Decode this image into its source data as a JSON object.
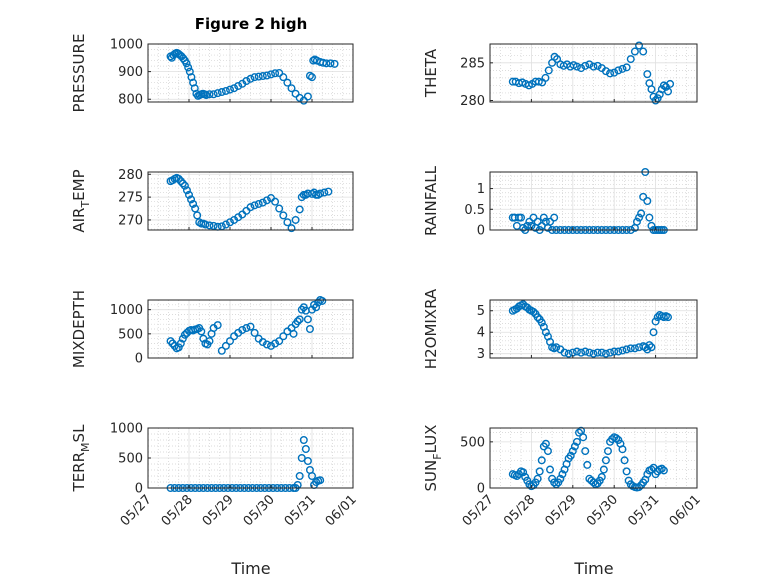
{
  "figure": {
    "title": "Figure 2 high",
    "xlabel": "Time"
  },
  "chart_data": [
    {
      "type": "scatter",
      "ylabel": "PRESSURE",
      "ylabel_main": "PRESSURE",
      "ylabel_sub": "",
      "ylabel_rest": "",
      "ylim": [
        790,
        1000
      ],
      "yticks": [
        "800",
        "900",
        "1000"
      ],
      "ytick_values": [
        800,
        900,
        1000
      ],
      "xlim": [
        0,
        5
      ],
      "xticks": [
        "05/27",
        "05/28",
        "05/29",
        "05/30",
        "05/31",
        "06/01"
      ],
      "x": [
        0.55,
        0.58,
        0.62,
        0.66,
        0.7,
        0.74,
        0.78,
        0.82,
        0.86,
        0.9,
        0.94,
        0.98,
        1.02,
        1.06,
        1.1,
        1.14,
        1.18,
        1.22,
        1.26,
        1.3,
        1.34,
        1.38,
        1.42,
        1.5,
        1.6,
        1.7,
        1.8,
        1.9,
        2.0,
        2.1,
        2.2,
        2.3,
        2.4,
        2.5,
        2.6,
        2.7,
        2.8,
        2.9,
        3.0,
        3.1,
        3.2,
        3.3,
        3.4,
        3.5,
        3.6,
        3.7,
        3.8,
        3.9,
        3.95,
        4.0,
        4.03,
        4.07,
        4.12,
        4.2,
        4.27,
        4.35,
        4.45,
        4.55
      ],
      "y": [
        955,
        950,
        960,
        965,
        968,
        965,
        960,
        955,
        948,
        940,
        930,
        915,
        900,
        880,
        860,
        840,
        820,
        812,
        815,
        818,
        820,
        818,
        815,
        818,
        818,
        822,
        826,
        830,
        835,
        840,
        848,
        856,
        866,
        874,
        880,
        882,
        884,
        886,
        890,
        894,
        895,
        880,
        860,
        840,
        820,
        805,
        795,
        810,
        885,
        880,
        940,
        944,
        940,
        935,
        932,
        930,
        930,
        928
      ],
      "color": "#0072BD"
    },
    {
      "type": "scatter",
      "ylabel": "THETA",
      "ylabel_main": "THETA",
      "ylabel_sub": "",
      "ylabel_rest": "",
      "ylim": [
        279.8,
        287.5
      ],
      "yticks": [
        "280",
        "285"
      ],
      "ytick_values": [
        280,
        285
      ],
      "xlim": [
        0,
        5
      ],
      "xticks": [
        "05/27",
        "05/28",
        "05/29",
        "05/30",
        "05/31",
        "06/01"
      ],
      "x": [
        0.55,
        0.62,
        0.7,
        0.78,
        0.86,
        0.94,
        1.02,
        1.1,
        1.18,
        1.26,
        1.34,
        1.42,
        1.5,
        1.56,
        1.62,
        1.7,
        1.78,
        1.86,
        1.94,
        2.02,
        2.1,
        2.2,
        2.3,
        2.4,
        2.5,
        2.6,
        2.7,
        2.8,
        2.9,
        3.0,
        3.1,
        3.2,
        3.3,
        3.4,
        3.5,
        3.6,
        3.7,
        3.8,
        3.85,
        3.9,
        3.95,
        4.0,
        4.05,
        4.1,
        4.15,
        4.2,
        4.25,
        4.3,
        4.35
      ],
      "y": [
        282.5,
        282.5,
        282.3,
        282.4,
        282.2,
        282.0,
        282.2,
        282.5,
        282.5,
        282.4,
        283.0,
        284.0,
        285.0,
        285.8,
        285.5,
        284.8,
        284.6,
        284.8,
        284.5,
        284.7,
        284.5,
        284.3,
        284.6,
        284.8,
        284.5,
        284.6,
        284.3,
        283.9,
        283.6,
        283.7,
        284.0,
        284.2,
        284.4,
        285.5,
        286.5,
        287.3,
        286.5,
        283.5,
        282.3,
        281.5,
        280.5,
        280.0,
        280.3,
        280.8,
        281.5,
        282.0,
        281.8,
        281.2,
        282.2
      ],
      "color": "#0072BD"
    },
    {
      "type": "scatter",
      "ylabel": "AIR_TEMP",
      "ylabel_main": "AIR",
      "ylabel_sub": "T",
      "ylabel_rest": "EMP",
      "ylim": [
        267.8,
        280.5
      ],
      "yticks": [
        "270",
        "275",
        "280"
      ],
      "ytick_values": [
        270,
        275,
        280
      ],
      "xlim": [
        0,
        5
      ],
      "xticks": [
        "05/27",
        "05/28",
        "05/29",
        "05/30",
        "05/31",
        "06/01"
      ],
      "x": [
        0.55,
        0.6,
        0.65,
        0.7,
        0.75,
        0.8,
        0.85,
        0.9,
        0.95,
        1.0,
        1.05,
        1.1,
        1.15,
        1.2,
        1.25,
        1.3,
        1.35,
        1.4,
        1.5,
        1.6,
        1.7,
        1.8,
        1.9,
        2.0,
        2.1,
        2.2,
        2.3,
        2.4,
        2.5,
        2.6,
        2.7,
        2.8,
        2.9,
        3.0,
        3.1,
        3.2,
        3.3,
        3.4,
        3.5,
        3.6,
        3.7,
        3.75,
        3.8,
        3.85,
        3.9,
        4.0,
        4.05,
        4.1,
        4.15,
        4.2,
        4.3,
        4.4
      ],
      "y": [
        278.5,
        278.7,
        279.0,
        279.2,
        279.0,
        278.5,
        278.0,
        277.5,
        276.5,
        275.5,
        274.5,
        273.5,
        272.5,
        271.0,
        269.5,
        269.2,
        269.2,
        269.0,
        268.8,
        268.7,
        268.5,
        268.6,
        269.0,
        269.5,
        270.0,
        270.6,
        271.2,
        272.0,
        272.8,
        273.2,
        273.5,
        273.8,
        274.3,
        274.8,
        274.0,
        272.5,
        271.0,
        269.5,
        268.2,
        270.0,
        272.3,
        275.0,
        275.5,
        275.5,
        275.8,
        275.7,
        276.0,
        275.5,
        275.5,
        275.8,
        276.0,
        276.2
      ],
      "color": "#0072BD"
    },
    {
      "type": "scatter",
      "ylabel": "RAINFALL",
      "ylabel_main": "RAINFALL",
      "ylabel_sub": "",
      "ylabel_rest": "",
      "ylim": [
        0,
        1.4
      ],
      "yticks": [
        "0",
        "0.5",
        "1"
      ],
      "ytick_values": [
        0,
        0.5,
        1
      ],
      "xlim": [
        0,
        5
      ],
      "xticks": [
        "05/27",
        "05/28",
        "05/29",
        "05/30",
        "05/31",
        "06/01"
      ],
      "x": [
        0.55,
        0.6,
        0.65,
        0.7,
        0.75,
        0.8,
        0.85,
        0.9,
        0.95,
        1.0,
        1.05,
        1.1,
        1.15,
        1.2,
        1.25,
        1.3,
        1.35,
        1.4,
        1.45,
        1.5,
        1.55,
        1.6,
        1.7,
        1.8,
        1.9,
        2.0,
        2.1,
        2.2,
        2.3,
        2.4,
        2.5,
        2.6,
        2.7,
        2.8,
        2.9,
        3.0,
        3.1,
        3.2,
        3.3,
        3.4,
        3.5,
        3.55,
        3.6,
        3.65,
        3.7,
        3.75,
        3.8,
        3.85,
        3.9,
        3.95,
        4.0,
        4.05,
        4.1,
        4.15,
        4.2
      ],
      "y": [
        0.3,
        0.3,
        0.1,
        0.3,
        0.3,
        0.05,
        0,
        0.1,
        0.2,
        0.1,
        0.3,
        0.05,
        0.2,
        0,
        0.1,
        0.3,
        0.2,
        0.05,
        0.2,
        0,
        0.3,
        0,
        0,
        0,
        0,
        0,
        0,
        0,
        0,
        0,
        0,
        0,
        0,
        0,
        0,
        0,
        0,
        0,
        0,
        0,
        0.05,
        0.2,
        0.3,
        0.4,
        0.8,
        1.4,
        0.7,
        0.3,
        0.1,
        0,
        0,
        0,
        0,
        0,
        0
      ],
      "color": "#0072BD"
    },
    {
      "type": "scatter",
      "ylabel": "MIXDEPTH",
      "ylabel_main": "MIXDEPTH",
      "ylabel_sub": "",
      "ylabel_rest": "",
      "ylim": [
        0,
        1200
      ],
      "yticks": [
        "0",
        "500",
        "1000"
      ],
      "ytick_values": [
        0,
        500,
        1000
      ],
      "xlim": [
        0,
        5
      ],
      "xticks": [
        "05/27",
        "05/28",
        "05/29",
        "05/30",
        "05/31",
        "06/01"
      ],
      "x": [
        0.55,
        0.6,
        0.65,
        0.7,
        0.75,
        0.8,
        0.85,
        0.9,
        0.95,
        1.0,
        1.05,
        1.1,
        1.15,
        1.2,
        1.25,
        1.3,
        1.35,
        1.4,
        1.45,
        1.5,
        1.55,
        1.6,
        1.7,
        1.8,
        1.9,
        2.0,
        2.1,
        2.2,
        2.3,
        2.4,
        2.5,
        2.6,
        2.7,
        2.8,
        2.9,
        3.0,
        3.1,
        3.2,
        3.3,
        3.4,
        3.5,
        3.55,
        3.6,
        3.65,
        3.7,
        3.75,
        3.8,
        3.85,
        3.9,
        3.95,
        4.0,
        4.05,
        4.1,
        4.15,
        4.2,
        4.25
      ],
      "y": [
        350,
        300,
        250,
        200,
        220,
        300,
        400,
        480,
        520,
        560,
        580,
        570,
        590,
        600,
        620,
        550,
        400,
        300,
        280,
        350,
        500,
        620,
        680,
        150,
        250,
        350,
        450,
        520,
        580,
        620,
        650,
        520,
        400,
        330,
        280,
        250,
        300,
        350,
        450,
        550,
        620,
        500,
        700,
        760,
        800,
        1000,
        1050,
        980,
        800,
        600,
        1000,
        1100,
        1050,
        1150,
        1200,
        1180
      ],
      "color": "#0072BD"
    },
    {
      "type": "scatter",
      "ylabel": "H2OMIXRA",
      "ylabel_main": "H2OMIXRA",
      "ylabel_sub": "",
      "ylabel_rest": "",
      "ylim": [
        2.8,
        5.5
      ],
      "yticks": [
        "3",
        "4",
        "5"
      ],
      "ytick_values": [
        3,
        4,
        5
      ],
      "xlim": [
        0,
        5
      ],
      "xticks": [
        "05/27",
        "05/28",
        "05/29",
        "05/30",
        "05/31",
        "06/01"
      ],
      "x": [
        0.55,
        0.6,
        0.65,
        0.7,
        0.75,
        0.8,
        0.85,
        0.9,
        0.95,
        1.0,
        1.05,
        1.1,
        1.15,
        1.2,
        1.25,
        1.3,
        1.35,
        1.4,
        1.45,
        1.5,
        1.55,
        1.6,
        1.7,
        1.8,
        1.9,
        2.0,
        2.1,
        2.2,
        2.3,
        2.4,
        2.5,
        2.6,
        2.7,
        2.8,
        2.9,
        3.0,
        3.1,
        3.2,
        3.3,
        3.4,
        3.5,
        3.6,
        3.7,
        3.75,
        3.8,
        3.85,
        3.9,
        3.95,
        4.0,
        4.05,
        4.1,
        4.15,
        4.2,
        4.25,
        4.3
      ],
      "y": [
        5.0,
        5.05,
        5.1,
        5.2,
        5.25,
        5.3,
        5.2,
        5.15,
        5.05,
        5.0,
        4.95,
        4.85,
        4.7,
        4.6,
        4.45,
        4.25,
        4.0,
        3.8,
        3.55,
        3.3,
        3.25,
        3.3,
        3.2,
        3.05,
        3.0,
        3.05,
        3.1,
        3.05,
        3.1,
        3.05,
        3.0,
        3.05,
        3.05,
        3.0,
        3.05,
        3.1,
        3.1,
        3.15,
        3.2,
        3.25,
        3.25,
        3.3,
        3.35,
        3.3,
        3.2,
        3.4,
        3.3,
        4.0,
        4.5,
        4.7,
        4.8,
        4.75,
        4.7,
        4.75,
        4.7
      ],
      "color": "#0072BD"
    },
    {
      "type": "scatter",
      "ylabel": "TERR_MSL",
      "ylabel_main": "TERR",
      "ylabel_sub": "M",
      "ylabel_rest": "SL",
      "ylim": [
        0,
        1000
      ],
      "yticks": [
        "0",
        "500",
        "1000"
      ],
      "ytick_values": [
        0,
        500,
        1000
      ],
      "xlim": [
        0,
        5
      ],
      "xticks": [
        "05/27",
        "05/28",
        "05/29",
        "05/30",
        "05/31",
        "06/01"
      ],
      "x": [
        0.55,
        0.65,
        0.75,
        0.85,
        0.95,
        1.05,
        1.15,
        1.25,
        1.35,
        1.45,
        1.55,
        1.65,
        1.75,
        1.85,
        1.95,
        2.05,
        2.15,
        2.25,
        2.35,
        2.45,
        2.55,
        2.65,
        2.75,
        2.85,
        2.95,
        3.05,
        3.15,
        3.25,
        3.35,
        3.45,
        3.55,
        3.6,
        3.65,
        3.7,
        3.75,
        3.8,
        3.85,
        3.9,
        3.95,
        4.0,
        4.05,
        4.1,
        4.15,
        4.2
      ],
      "y": [
        0,
        0,
        0,
        0,
        0,
        0,
        0,
        0,
        0,
        0,
        0,
        0,
        0,
        0,
        0,
        0,
        0,
        0,
        0,
        0,
        0,
        0,
        0,
        0,
        0,
        0,
        0,
        0,
        0,
        0,
        0,
        0,
        50,
        200,
        500,
        800,
        650,
        450,
        300,
        200,
        50,
        100,
        120,
        130
      ],
      "color": "#0072BD"
    },
    {
      "type": "scatter",
      "ylabel": "SUN_FLUX",
      "ylabel_main": "SUN",
      "ylabel_sub": "F",
      "ylabel_rest": "LUX",
      "ylim": [
        0,
        650
      ],
      "yticks": [
        "0",
        "500"
      ],
      "ytick_values": [
        0,
        500
      ],
      "xlim": [
        0,
        5
      ],
      "xticks": [
        "05/27",
        "05/28",
        "05/29",
        "05/30",
        "05/31",
        "06/01"
      ],
      "x": [
        0.55,
        0.6,
        0.65,
        0.7,
        0.75,
        0.8,
        0.85,
        0.9,
        0.95,
        1.0,
        1.05,
        1.1,
        1.15,
        1.2,
        1.25,
        1.3,
        1.35,
        1.4,
        1.45,
        1.5,
        1.55,
        1.6,
        1.65,
        1.7,
        1.75,
        1.8,
        1.85,
        1.9,
        1.95,
        2.0,
        2.05,
        2.1,
        2.15,
        2.2,
        2.25,
        2.3,
        2.35,
        2.4,
        2.45,
        2.5,
        2.55,
        2.6,
        2.65,
        2.7,
        2.75,
        2.8,
        2.85,
        2.9,
        2.95,
        3.0,
        3.05,
        3.1,
        3.15,
        3.2,
        3.25,
        3.3,
        3.35,
        3.4,
        3.45,
        3.5,
        3.55,
        3.6,
        3.65,
        3.7,
        3.75,
        3.8,
        3.85,
        3.9,
        3.95,
        4.0,
        4.05,
        4.1,
        4.15,
        4.2
      ],
      "y": [
        150,
        140,
        130,
        150,
        180,
        170,
        120,
        80,
        40,
        20,
        30,
        60,
        100,
        180,
        300,
        450,
        480,
        400,
        200,
        100,
        60,
        40,
        60,
        100,
        150,
        200,
        260,
        320,
        350,
        400,
        450,
        500,
        600,
        620,
        550,
        400,
        250,
        100,
        80,
        60,
        40,
        50,
        80,
        120,
        200,
        300,
        400,
        500,
        530,
        550,
        540,
        520,
        480,
        420,
        300,
        180,
        80,
        40,
        20,
        10,
        5,
        10,
        30,
        60,
        90,
        150,
        190,
        200,
        220,
        150,
        180,
        200,
        210,
        190
      ],
      "color": "#0072BD"
    }
  ]
}
